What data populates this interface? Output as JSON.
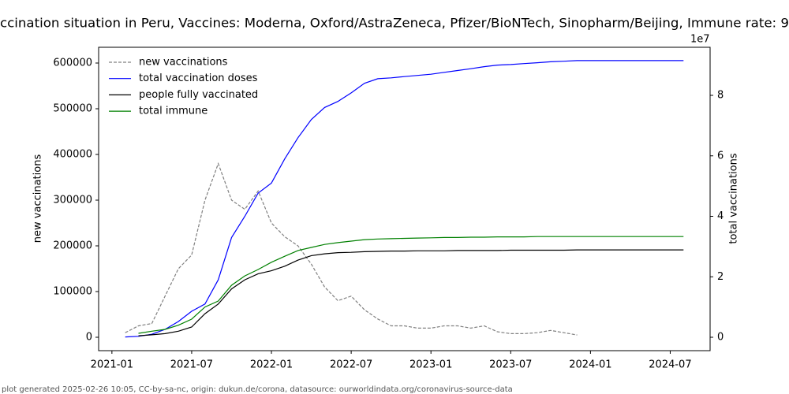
{
  "chart_data": {
    "type": "line",
    "title": "ccination situation in Peru, Vaccines: Moderna, Oxford/AstraZeneca, Pfizer/BioNTech, Sinopharm/Beijing, Immune rate: 9",
    "footer": "plot generated 2025-02-26 10:05, CC-by-sa-nc, origin: dukun.de/corona, datasource: ourworldindata.org/coronavirus-source-data",
    "ylabel": "new vaccinations",
    "y2label": "total vaccinations",
    "y2_offset_label": "1e7",
    "x": [
      "2021-02",
      "2021-03",
      "2021-04",
      "2021-05",
      "2021-06",
      "2021-07",
      "2021-08",
      "2021-09",
      "2021-10",
      "2021-11",
      "2021-12",
      "2022-01",
      "2022-02",
      "2022-03",
      "2022-04",
      "2022-05",
      "2022-06",
      "2022-07",
      "2022-08",
      "2022-09",
      "2022-10",
      "2022-11",
      "2022-12",
      "2023-01",
      "2023-02",
      "2023-03",
      "2023-04",
      "2023-05",
      "2023-06",
      "2023-07",
      "2023-08",
      "2023-09",
      "2023-10",
      "2023-11",
      "2023-12",
      "2024-01",
      "2024-02",
      "2024-03",
      "2024-04",
      "2024-05",
      "2024-06",
      "2024-07",
      "2024-08"
    ],
    "xlim": [
      "2020-12",
      "2024-10"
    ],
    "xticks": [
      "2021-01",
      "2021-07",
      "2022-01",
      "2022-07",
      "2023-01",
      "2023-07",
      "2024-01",
      "2024-07"
    ],
    "ylim": [
      -29300,
      634500
    ],
    "yticks": [
      0,
      100000,
      200000,
      300000,
      400000,
      500000,
      600000
    ],
    "y2lim": [
      -4430000,
      95900000
    ],
    "y2ticks": [
      0,
      {
        "value": 20000000,
        "label": "2"
      },
      {
        "value": 40000000,
        "label": "4"
      },
      {
        "value": 60000000,
        "label": "6"
      },
      {
        "value": 80000000,
        "label": "8"
      }
    ],
    "legend": "upper left",
    "series": [
      {
        "name": "new vaccinations",
        "color": "#808080",
        "linestyle": "dashed",
        "axis": "y",
        "values": [
          10000,
          25000,
          30000,
          90000,
          150000,
          180000,
          300000,
          380000,
          300000,
          280000,
          320000,
          250000,
          220000,
          200000,
          160000,
          110000,
          80000,
          90000,
          60000,
          40000,
          25000,
          25000,
          20000,
          20000,
          25000,
          25000,
          20000,
          25000,
          12000,
          8000,
          8000,
          10000,
          15000,
          10000,
          5000,
          null,
          null,
          null,
          null,
          null,
          null,
          null,
          null
        ]
      },
      {
        "name": "total vaccination doses",
        "color": "#0000ff",
        "linestyle": "solid",
        "axis": "y2",
        "values": [
          100000,
          300000,
          1000000,
          2600000,
          5200000,
          8600000,
          11000000,
          19000000,
          33000000,
          40000000,
          47700000,
          51000000,
          59000000,
          66000000,
          72000000,
          76000000,
          78000000,
          80800000,
          84000000,
          85500000,
          85800000,
          86200000,
          86600000,
          87000000,
          87600000,
          88200000,
          88800000,
          89500000,
          90000000,
          90200000,
          90500000,
          90800000,
          91100000,
          91300000,
          91500000,
          91500000,
          91500000,
          91500000,
          91500000,
          91500000,
          91500000,
          91500000,
          91500000
        ]
      },
      {
        "name": "people fully vaccinated",
        "color": "#000000",
        "linestyle": "solid",
        "axis": "y2",
        "values": [
          null,
          500000,
          800000,
          1200000,
          2000000,
          3400000,
          7800000,
          11000000,
          16000000,
          19000000,
          21000000,
          22000000,
          23500000,
          25500000,
          27000000,
          27600000,
          28000000,
          28100000,
          28300000,
          28400000,
          28500000,
          28500000,
          28600000,
          28600000,
          28600000,
          28700000,
          28700000,
          28700000,
          28700000,
          28800000,
          28800000,
          28800000,
          28800000,
          28800000,
          28900000,
          28900000,
          28900000,
          28900000,
          28900000,
          28900000,
          28900000,
          28900000,
          28900000
        ]
      },
      {
        "name": "total immune",
        "color": "#008000",
        "linestyle": "solid",
        "axis": "y2",
        "values": [
          null,
          1300000,
          2000000,
          2600000,
          4000000,
          6000000,
          10000000,
          12000000,
          17200000,
          20300000,
          22400000,
          24800000,
          26800000,
          28700000,
          29700000,
          30700000,
          31300000,
          31800000,
          32300000,
          32500000,
          32600000,
          32700000,
          32800000,
          32900000,
          33000000,
          33000000,
          33100000,
          33100000,
          33200000,
          33200000,
          33200000,
          33300000,
          33300000,
          33300000,
          33300000,
          33300000,
          33300000,
          33300000,
          33300000,
          33300000,
          33300000,
          33300000,
          33300000
        ]
      }
    ]
  }
}
